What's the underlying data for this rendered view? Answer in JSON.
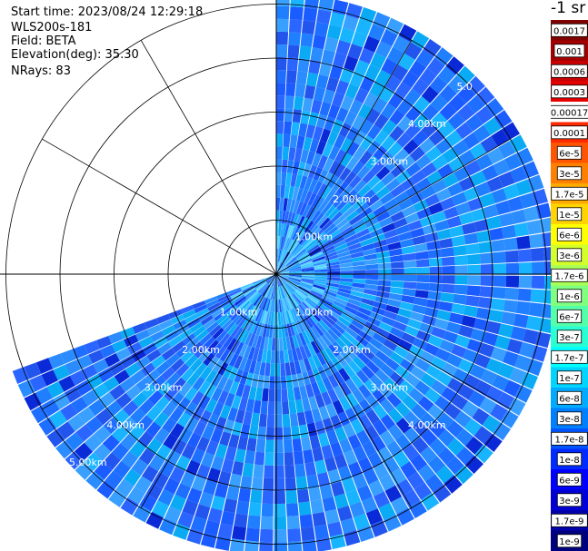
{
  "header": {
    "start_time": "Start time: 2023/08/24 12:29:18",
    "instrument": "WLS200s-181",
    "field": "Field: BETA",
    "elevation": "Elevation(deg): 35.30",
    "nrays": "NRays: 83"
  },
  "chart_data": {
    "type": "heatmap",
    "projection": "polar (PPI scan)",
    "field": "BETA",
    "nrays": 83,
    "elevation_deg": 35.3,
    "range_rings_km": [
      1.0,
      2.0,
      3.0,
      4.0,
      5.0
    ],
    "ring_labels_right": [
      "1.00km",
      "2.00km",
      "3.00km",
      "4.00km",
      "5.0"
    ],
    "ring_labels_lower_right": [
      "1.00km",
      "2.00km",
      "3.00km",
      "4.00km"
    ],
    "ring_labels_lower_left": [
      "1.00km",
      "2.00km",
      "3.00km",
      "4.00km",
      "5.00km"
    ],
    "scan_azimuth_deg": [
      0,
      250
    ],
    "max_range_km": 5.2,
    "spokes_deg": [
      0,
      30,
      60,
      90,
      120,
      150,
      180,
      210,
      240,
      270,
      300,
      330
    ],
    "dominant_value_range": [
      "6e-9",
      "6e-8"
    ],
    "colorbar": {
      "unit_label": "-1 sr",
      "labels": [
        "0.0017",
        "0.001",
        "0.0006",
        "0.0003",
        "0.00017",
        "0.0001",
        "6e-5",
        "3e-5",
        "1.7e-5",
        "1e-5",
        "6e-6",
        "3e-6",
        "1.7e-6",
        "1e-6",
        "6e-7",
        "3e-7",
        "1.7e-7",
        "1e-7",
        "6e-8",
        "3e-8",
        "1.7e-8",
        "1e-8",
        "6e-9",
        "3e-9",
        "1.7e-9",
        "1e-9"
      ],
      "colors": [
        "#7f0000",
        "#a50000",
        "#c80000",
        "#e60000",
        "#ffffff",
        "#ff2a00",
        "#ff5500",
        "#ff8000",
        "#ffaa00",
        "#ffd400",
        "#ffff00",
        "#d4ff2a",
        "#aaff55",
        "#80ff80",
        "#55ffaa",
        "#2affd4",
        "#00ffff",
        "#00d4ff",
        "#00aaff",
        "#0080ff",
        "#0055ff",
        "#002aff",
        "#0000ff",
        "#0000d4",
        "#0000aa",
        "#00007f"
      ],
      "box_labels": [
        "0.0017",
        "0.001",
        "0.0006",
        "0.0003",
        "0.00017",
        "0.0001",
        "6e-5",
        "3e-5",
        "1.7e-5",
        "1e-5",
        "6e-6",
        "3e-6",
        "1.7e-6",
        "1e-6",
        "6e-7",
        "3e-7",
        "1.7e-7",
        "1e-7",
        "6e-8",
        "3e-8",
        "1.7e-8",
        "1e-8",
        "6e-9",
        "3e-9",
        "1.7e-9",
        "1e-9"
      ]
    }
  }
}
